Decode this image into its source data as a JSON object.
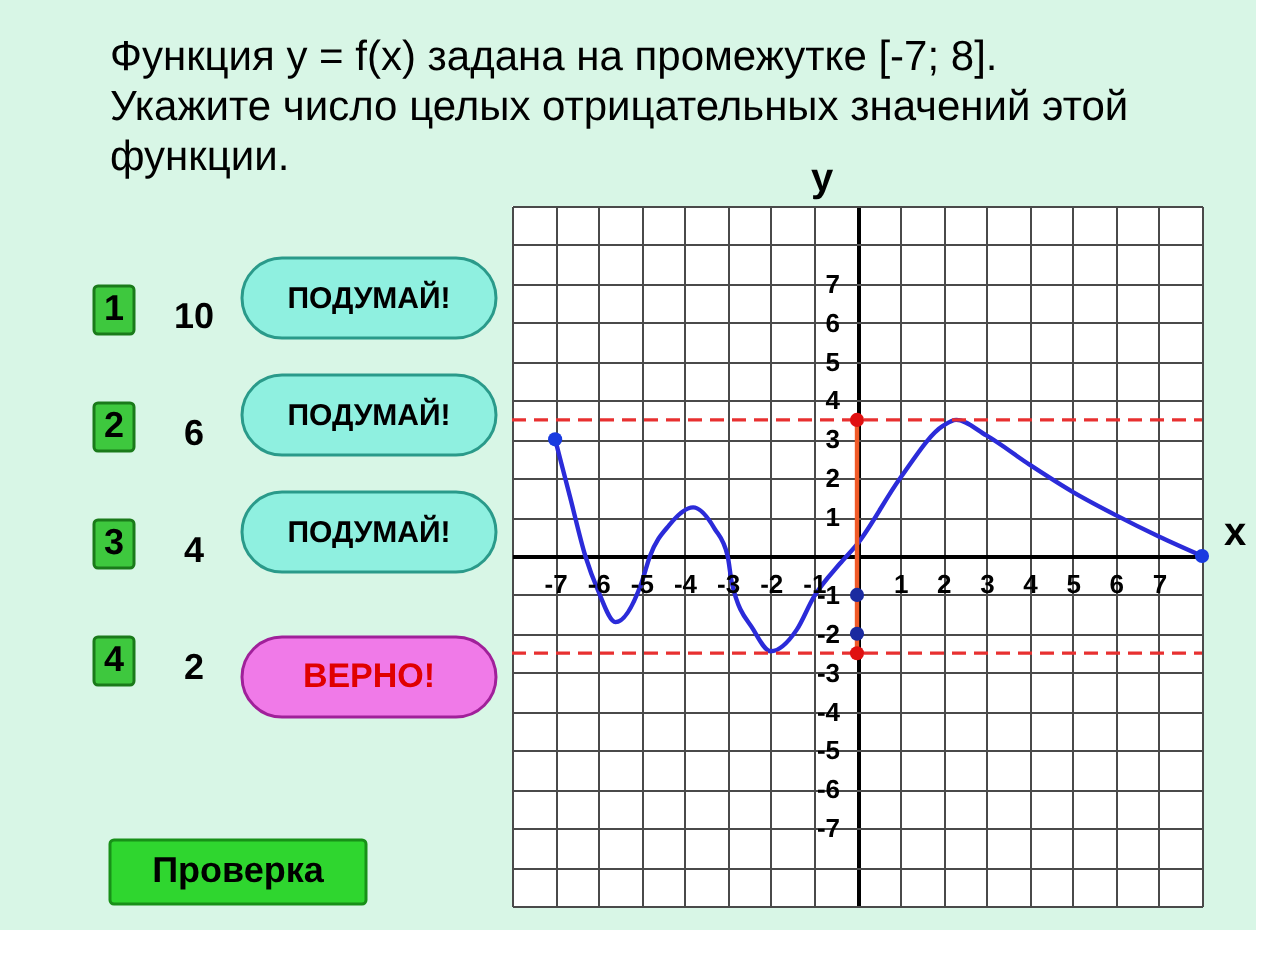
{
  "chart_data": {
    "type": "line",
    "title": "Функция y = f(x) задана на промежутке [-7; 8]. Укажите число целых отрицательных значений этой функции.",
    "xlabel": "x",
    "ylabel": "y",
    "xlim": [
      -8,
      8
    ],
    "ylim": [
      -9,
      9
    ],
    "xticks": [
      {
        "value": -8,
        "label": null
      },
      -7,
      -6,
      -5,
      -4,
      -3,
      -2,
      -1,
      {
        "value": 0,
        "label": null
      },
      1,
      2,
      3,
      4,
      5,
      6,
      7,
      {
        "value": 8,
        "label": null
      }
    ],
    "yticks": [
      {
        "value": -9,
        "label": null
      },
      {
        "value": -8,
        "label": null
      },
      -7,
      -6,
      -5,
      -4,
      -3,
      -2,
      -1,
      {
        "value": 0,
        "label": null
      },
      1,
      2,
      3,
      4,
      5,
      6,
      7,
      {
        "value": 8,
        "label": null
      },
      {
        "value": 9,
        "label": null
      }
    ],
    "grid": true,
    "series": [
      {
        "type": "line",
        "color": "#2b2bd9",
        "x": [
          -7,
          -6.65,
          -6.3,
          -6,
          -5.6,
          -5,
          -4.8,
          -4.35,
          -3.8,
          -3.3,
          -3,
          -2.9,
          -2.4,
          -2,
          -1.4,
          -1,
          -0.4,
          0,
          1,
          2,
          2.3,
          3,
          4,
          5,
          6,
          7,
          8
        ],
        "values": [
          3,
          1.5,
          0,
          -0.9,
          -1.7,
          -0.7,
          0,
          0.8,
          1.25,
          0.7,
          0,
          -0.7,
          -1.9,
          -2.45,
          -1.9,
          -1.05,
          -0.2,
          0.3,
          2,
          3.35,
          3.5,
          3.1,
          2.35,
          1.65,
          1.05,
          0.5,
          0
        ]
      },
      {
        "type": "line",
        "color": "#f05a28",
        "x": [
          0,
          0
        ],
        "values": [
          -2.5,
          3.5
        ]
      },
      {
        "type": "scatter",
        "marker": "circle",
        "color": "#1a3be0",
        "x": [
          -7,
          8
        ],
        "values": [
          3,
          0
        ]
      },
      {
        "type": "scatter",
        "marker": "circle",
        "color": "#1a2aa0",
        "x": [
          0,
          0
        ],
        "values": [
          -1,
          -2
        ]
      },
      {
        "type": "scatter",
        "marker": "circle",
        "color": "#e01010",
        "x": [
          0,
          0
        ],
        "values": [
          3.5,
          -2.5
        ]
      }
    ],
    "ref_lines": [
      {
        "axis": "y",
        "value": 3.5,
        "color": "#e83030",
        "line_style": "dashed"
      },
      {
        "axis": "y",
        "value": -2.5,
        "color": "#e83030",
        "line_style": "dashed"
      }
    ],
    "annotations": [
      "1",
      "10",
      "ПОДУМАЙ!",
      "2",
      "6",
      "ПОДУМАЙ!",
      "3",
      "4",
      "ПОДУМАЙ!",
      "4",
      "2",
      "ВЕРНО!",
      "Проверка"
    ]
  }
}
